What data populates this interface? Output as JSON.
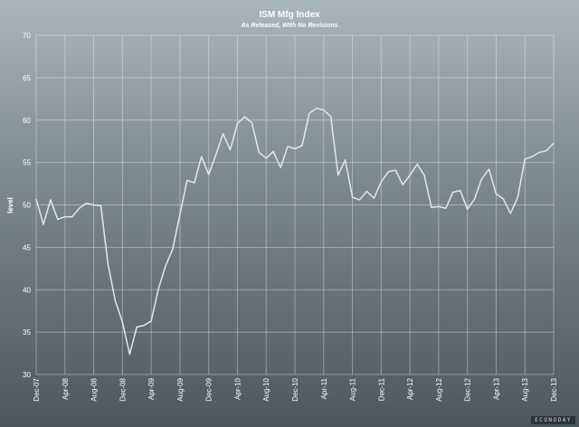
{
  "chart_data": {
    "type": "line",
    "title": "ISM Mfg Index",
    "subtitle": "As Released, With No Revisions",
    "xlabel": "",
    "ylabel": "level",
    "ylim": [
      30,
      70
    ],
    "yticks": [
      30,
      35,
      40,
      45,
      50,
      55,
      60,
      65,
      70
    ],
    "grid": true,
    "x_tick_labels": [
      "Dec-07",
      "Apr-08",
      "Aug-08",
      "Dec-08",
      "Apr-09",
      "Aug-09",
      "Dec-09",
      "Apr-10",
      "Aug-10",
      "Dec-10",
      "Apr-11",
      "Aug-11",
      "Dec-11",
      "Apr-12",
      "Aug-12",
      "Dec-12",
      "Apr-13",
      "Aug-13",
      "Dec-13"
    ],
    "line_color": "#dfe8f0",
    "series": [
      {
        "values": [
          50.7,
          47.7,
          50.6,
          48.3,
          48.6,
          48.6,
          49.6,
          50.2,
          50.0,
          49.9,
          43.0,
          38.7,
          36.2,
          32.4,
          35.6,
          35.8,
          36.3,
          40.1,
          42.8,
          44.8,
          48.9,
          52.9,
          52.6,
          55.7,
          53.6,
          55.9,
          58.4,
          56.5,
          59.6,
          60.4,
          59.7,
          56.2,
          55.5,
          56.3,
          54.4,
          56.9,
          56.6,
          57.0,
          60.8,
          61.4,
          61.2,
          60.4,
          53.5,
          55.3,
          50.9,
          50.6,
          51.6,
          50.8,
          52.7,
          53.9,
          54.1,
          52.4,
          53.5,
          54.8,
          53.5,
          49.7,
          49.8,
          49.6,
          51.5,
          51.7,
          49.5,
          50.7,
          53.1,
          54.2,
          51.3,
          50.7,
          49.0,
          50.9,
          55.4,
          55.7,
          56.2,
          56.4,
          57.3
        ]
      }
    ]
  },
  "brand": {
    "text": "ECONODAY"
  }
}
